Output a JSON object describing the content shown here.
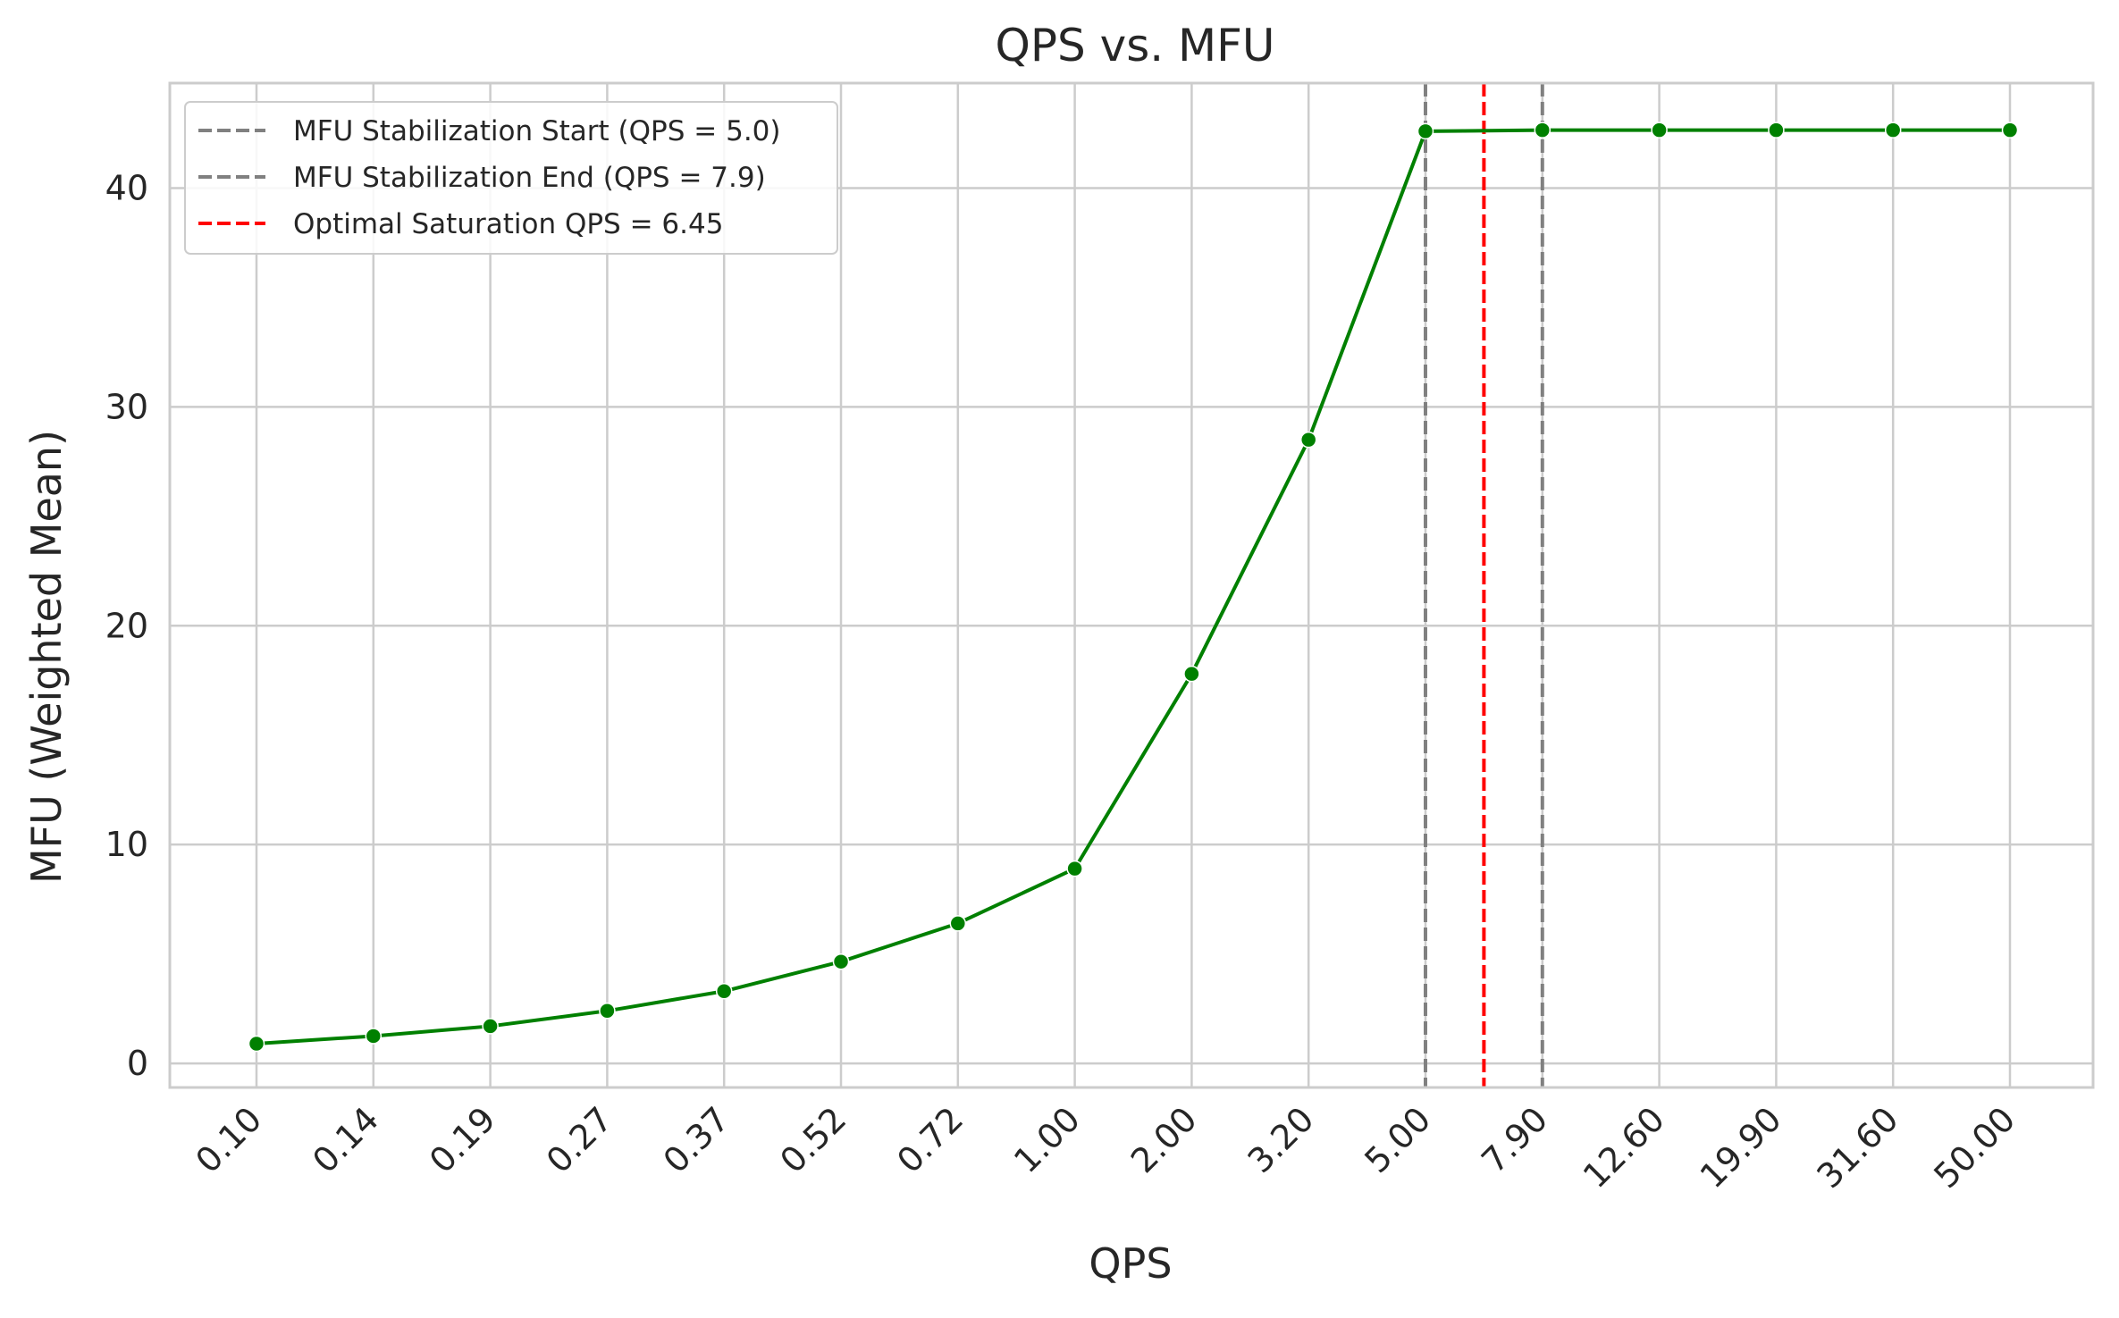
{
  "chart_data": {
    "type": "line",
    "title": "QPS vs. MFU",
    "xlabel": "QPS",
    "ylabel": "MFU (Weighted Mean)",
    "categories": [
      "0.10",
      "0.14",
      "0.19",
      "0.27",
      "0.37",
      "0.52",
      "0.72",
      "1.00",
      "2.00",
      "3.20",
      "5.00",
      "7.90",
      "12.60",
      "19.90",
      "31.60",
      "50.00"
    ],
    "series": [
      {
        "values": [
          0.9,
          1.25,
          1.7,
          2.4,
          3.3,
          4.65,
          6.4,
          8.9,
          17.8,
          28.5,
          42.6,
          42.65,
          42.65,
          42.65,
          42.65,
          42.65
        ],
        "color": "#008000"
      }
    ],
    "ylim": [
      -1.1,
      44.8
    ],
    "yticks": [
      0,
      10,
      20,
      30,
      40
    ],
    "grid": true,
    "legend_position": "top-left",
    "reference_lines": [
      {
        "label": "MFU Stabilization Start (QPS = 5.0)",
        "category_position": 10,
        "color": "#808080",
        "style": "dashed"
      },
      {
        "label": "MFU Stabilization End (QPS = 7.9)",
        "category_position": 11,
        "color": "#808080",
        "style": "dashed"
      },
      {
        "label": "Optimal Saturation QPS = 6.45",
        "category_position": 10.5,
        "color": "#ff0000",
        "style": "dashed"
      }
    ]
  }
}
